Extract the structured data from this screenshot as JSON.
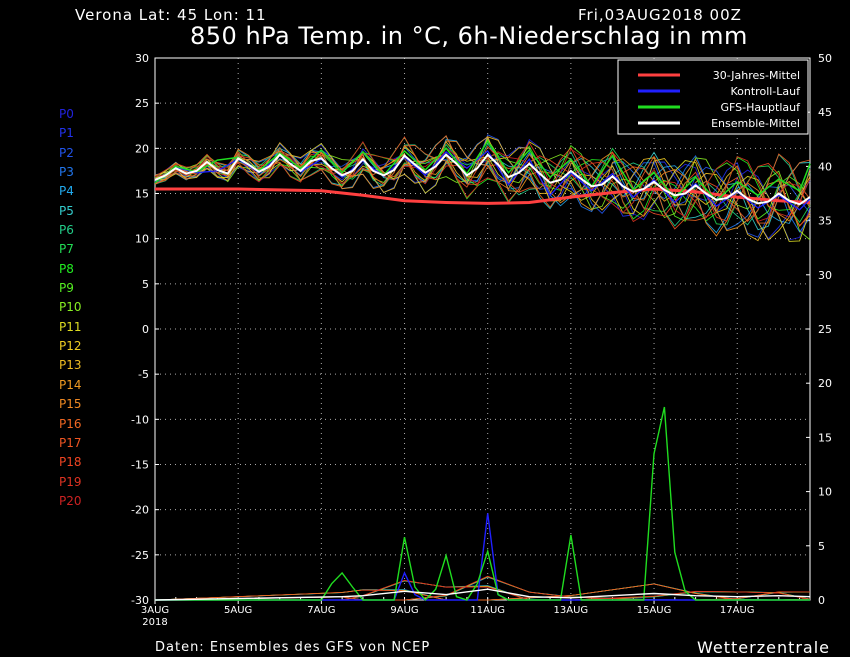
{
  "header": {
    "location": "Verona   Lat: 45 Lon: 11",
    "run": "Fri,03AUG2018 00Z",
    "title": "850 hPa Temp. in °C, 6h-Niederschlag in mm"
  },
  "footer": {
    "source": "Daten: Ensembles des GFS von NCEP",
    "brand": "Wetterzentrale"
  },
  "members": [
    {
      "label": "P0",
      "color": "#2222dd"
    },
    {
      "label": "P1",
      "color": "#2233ee"
    },
    {
      "label": "P2",
      "color": "#2255ee"
    },
    {
      "label": "P3",
      "color": "#2277ee"
    },
    {
      "label": "P4",
      "color": "#22aaee"
    },
    {
      "label": "P5",
      "color": "#33cccc"
    },
    {
      "label": "P6",
      "color": "#22cc88"
    },
    {
      "label": "P7",
      "color": "#22dd55"
    },
    {
      "label": "P8",
      "color": "#22ee22"
    },
    {
      "label": "P9",
      "color": "#55ee22"
    },
    {
      "label": "P10",
      "color": "#88ee22"
    },
    {
      "label": "P11",
      "color": "#dddd22"
    },
    {
      "label": "P12",
      "color": "#eecc22"
    },
    {
      "label": "P13",
      "color": "#eebb22"
    },
    {
      "label": "P14",
      "color": "#ee9922"
    },
    {
      "label": "P15",
      "color": "#ee8822"
    },
    {
      "label": "P16",
      "color": "#ee6622"
    },
    {
      "label": "P17",
      "color": "#ee5522"
    },
    {
      "label": "P18",
      "color": "#ee4422"
    },
    {
      "label": "P19",
      "color": "#dd3322"
    },
    {
      "label": "P20",
      "color": "#cc2222"
    }
  ],
  "chart_data": {
    "type": "line",
    "x_unit": "days since 03AUG2018 00Z",
    "xticks": [
      {
        "x": 0,
        "label": "3AUG",
        "sub": "2018"
      },
      {
        "x": 2,
        "label": "5AUG"
      },
      {
        "x": 4,
        "label": "7AUG"
      },
      {
        "x": 6,
        "label": "9AUG"
      },
      {
        "x": 8,
        "label": "11AUG"
      },
      {
        "x": 10,
        "label": "13AUG"
      },
      {
        "x": 12,
        "label": "15AUG"
      },
      {
        "x": 14,
        "label": "17AUG"
      }
    ],
    "xlim": [
      0,
      15.75
    ],
    "ylim_left": [
      -30,
      30
    ],
    "yticks_left": [
      -30,
      -25,
      -20,
      -15,
      -10,
      -5,
      0,
      5,
      10,
      15,
      20,
      25,
      30
    ],
    "ylim_right": [
      0,
      50
    ],
    "yticks_right": [
      0,
      5,
      10,
      15,
      20,
      25,
      30,
      35,
      40,
      45,
      50
    ],
    "grid": true,
    "legend_position": "top-right",
    "legend": [
      {
        "name": "30-Jahres-Mittel",
        "color": "#ff4040"
      },
      {
        "name": "Kontroll-Lauf",
        "color": "#2020ff"
      },
      {
        "name": "GFS-Hauptlauf",
        "color": "#20dd20"
      },
      {
        "name": "Ensemble-Mittel",
        "color": "#ffffff"
      }
    ],
    "temperature": {
      "climate_mean": [
        [
          0,
          15.5
        ],
        [
          2,
          15.5
        ],
        [
          4,
          15.3
        ],
        [
          5,
          14.8
        ],
        [
          6,
          14.2
        ],
        [
          7,
          14.0
        ],
        [
          8,
          13.9
        ],
        [
          9,
          14.0
        ],
        [
          10,
          14.6
        ],
        [
          11,
          15.1
        ],
        [
          12,
          15.5
        ],
        [
          13,
          15.2
        ],
        [
          14,
          14.6
        ],
        [
          15,
          14.2
        ],
        [
          15.75,
          14.0
        ]
      ],
      "ensemble_mean": [
        [
          0,
          16.5
        ],
        [
          0.25,
          17.0
        ],
        [
          0.5,
          17.8
        ],
        [
          0.75,
          17.2
        ],
        [
          1,
          17.5
        ],
        [
          1.25,
          18.5
        ],
        [
          1.5,
          17.6
        ],
        [
          1.75,
          17.2
        ],
        [
          2,
          18.9
        ],
        [
          2.25,
          18.2
        ],
        [
          2.5,
          17.4
        ],
        [
          2.75,
          18.0
        ],
        [
          3,
          19.3
        ],
        [
          3.25,
          18.3
        ],
        [
          3.5,
          17.5
        ],
        [
          3.75,
          18.6
        ],
        [
          4,
          18.9
        ],
        [
          4.25,
          17.8
        ],
        [
          4.5,
          17.0
        ],
        [
          4.75,
          17.5
        ],
        [
          5,
          18.8
        ],
        [
          5.25,
          17.5
        ],
        [
          5.5,
          17.0
        ],
        [
          5.75,
          17.6
        ],
        [
          6,
          19.2
        ],
        [
          6.25,
          18.2
        ],
        [
          6.5,
          17.3
        ],
        [
          6.75,
          18.0
        ],
        [
          7,
          19.3
        ],
        [
          7.25,
          18.3
        ],
        [
          7.5,
          17.0
        ],
        [
          7.75,
          17.8
        ],
        [
          8,
          19.3
        ],
        [
          8.25,
          18.2
        ],
        [
          8.5,
          16.8
        ],
        [
          8.75,
          17.3
        ],
        [
          9,
          18.3
        ],
        [
          9.25,
          17.2
        ],
        [
          9.5,
          16.2
        ],
        [
          9.75,
          16.5
        ],
        [
          10,
          17.5
        ],
        [
          10.25,
          16.6
        ],
        [
          10.5,
          15.8
        ],
        [
          10.75,
          16.0
        ],
        [
          11,
          16.9
        ],
        [
          11.25,
          15.8
        ],
        [
          11.5,
          15.2
        ],
        [
          11.75,
          15.5
        ],
        [
          12,
          16.3
        ],
        [
          12.25,
          15.4
        ],
        [
          12.5,
          14.8
        ],
        [
          12.75,
          15.0
        ],
        [
          13,
          15.9
        ],
        [
          13.25,
          15.0
        ],
        [
          13.5,
          14.3
        ],
        [
          13.75,
          14.5
        ],
        [
          14,
          15.3
        ],
        [
          14.25,
          14.4
        ],
        [
          14.5,
          13.9
        ],
        [
          14.75,
          14.1
        ],
        [
          15,
          15.0
        ],
        [
          15.25,
          14.2
        ],
        [
          15.5,
          13.8
        ],
        [
          15.75,
          14.6
        ]
      ],
      "control_run": [
        [
          0,
          16.3
        ],
        [
          0.5,
          17.9
        ],
        [
          1,
          17.3
        ],
        [
          1.5,
          17.5
        ],
        [
          2,
          18.8
        ],
        [
          2.5,
          17.3
        ],
        [
          3,
          19.2
        ],
        [
          3.5,
          17.4
        ],
        [
          4,
          18.8
        ],
        [
          4.5,
          16.8
        ],
        [
          5,
          18.6
        ],
        [
          5.5,
          16.9
        ],
        [
          6,
          19.0
        ],
        [
          6.5,
          17.0
        ],
        [
          7,
          19.6
        ],
        [
          7.5,
          17.8
        ],
        [
          8,
          19.7
        ],
        [
          8.5,
          16.0
        ],
        [
          9,
          18.8
        ],
        [
          9.5,
          14.8
        ],
        [
          10,
          17.3
        ],
        [
          10.5,
          15.3
        ],
        [
          11,
          17.2
        ],
        [
          11.5,
          14.6
        ],
        [
          12,
          16.5
        ],
        [
          12.5,
          14.0
        ],
        [
          13,
          16.1
        ],
        [
          13.5,
          13.6
        ],
        [
          14,
          15.2
        ],
        [
          14.5,
          13.4
        ],
        [
          15,
          14.8
        ],
        [
          15.5,
          13.2
        ],
        [
          15.75,
          14.4
        ]
      ],
      "gfs_main_run": [
        [
          0,
          16.2
        ],
        [
          0.5,
          18.0
        ],
        [
          1,
          17.4
        ],
        [
          1.5,
          18.7
        ],
        [
          2,
          19.0
        ],
        [
          2.5,
          17.5
        ],
        [
          3,
          19.5
        ],
        [
          3.5,
          17.8
        ],
        [
          4,
          19.8
        ],
        [
          4.5,
          17.3
        ],
        [
          5,
          19.6
        ],
        [
          5.5,
          17.0
        ],
        [
          6,
          19.7
        ],
        [
          6.5,
          17.6
        ],
        [
          7,
          20.0
        ],
        [
          7.5,
          17.2
        ],
        [
          8,
          20.8
        ],
        [
          8.5,
          17.3
        ],
        [
          9,
          19.8
        ],
        [
          9.5,
          16.8
        ],
        [
          10,
          18.8
        ],
        [
          10.5,
          15.8
        ],
        [
          11,
          19.2
        ],
        [
          11.5,
          15.4
        ],
        [
          12,
          17.3
        ],
        [
          12.5,
          14.5
        ],
        [
          13,
          16.8
        ],
        [
          13.5,
          14.2
        ],
        [
          14,
          16.3
        ],
        [
          14.5,
          14.8
        ],
        [
          15,
          16.6
        ],
        [
          15.5,
          15.3
        ],
        [
          15.75,
          18.3
        ]
      ]
    },
    "precipitation_mm": {
      "gfs_main_run": [
        [
          0,
          0
        ],
        [
          4,
          0
        ],
        [
          4.25,
          1.5
        ],
        [
          4.5,
          2.5
        ],
        [
          4.75,
          1.2
        ],
        [
          5,
          0
        ],
        [
          5.75,
          0
        ],
        [
          6,
          5.8
        ],
        [
          6.25,
          1.2
        ],
        [
          6.5,
          0
        ],
        [
          6.75,
          1.0
        ],
        [
          7,
          4.1
        ],
        [
          7.25,
          0.3
        ],
        [
          7.5,
          0
        ],
        [
          7.75,
          1.5
        ],
        [
          8,
          4.5
        ],
        [
          8.25,
          0.5
        ],
        [
          8.5,
          0
        ],
        [
          9.75,
          0
        ],
        [
          10,
          6.0
        ],
        [
          10.25,
          0
        ],
        [
          11.75,
          0
        ],
        [
          12,
          13.5
        ],
        [
          12.25,
          17.8
        ],
        [
          12.5,
          4.4
        ],
        [
          12.75,
          0.8
        ],
        [
          13,
          0
        ],
        [
          15.75,
          0
        ]
      ],
      "control_run": [
        [
          0,
          0
        ],
        [
          5.75,
          0
        ],
        [
          6,
          2.5
        ],
        [
          6.25,
          0.5
        ],
        [
          6.5,
          0
        ],
        [
          7.75,
          0
        ],
        [
          8,
          8.0
        ],
        [
          8.25,
          0.5
        ],
        [
          8.5,
          0
        ],
        [
          15.75,
          0
        ]
      ],
      "ensemble_mean": [
        [
          0,
          0
        ],
        [
          4.5,
          0.3
        ],
        [
          5,
          0.4
        ],
        [
          6,
          0.8
        ],
        [
          7,
          0.5
        ],
        [
          8,
          1.0
        ],
        [
          9,
          0.3
        ],
        [
          10,
          0.2
        ],
        [
          12,
          0.6
        ],
        [
          13,
          0.4
        ],
        [
          14,
          0.3
        ],
        [
          15,
          0.4
        ],
        [
          15.75,
          0.3
        ]
      ]
    }
  }
}
